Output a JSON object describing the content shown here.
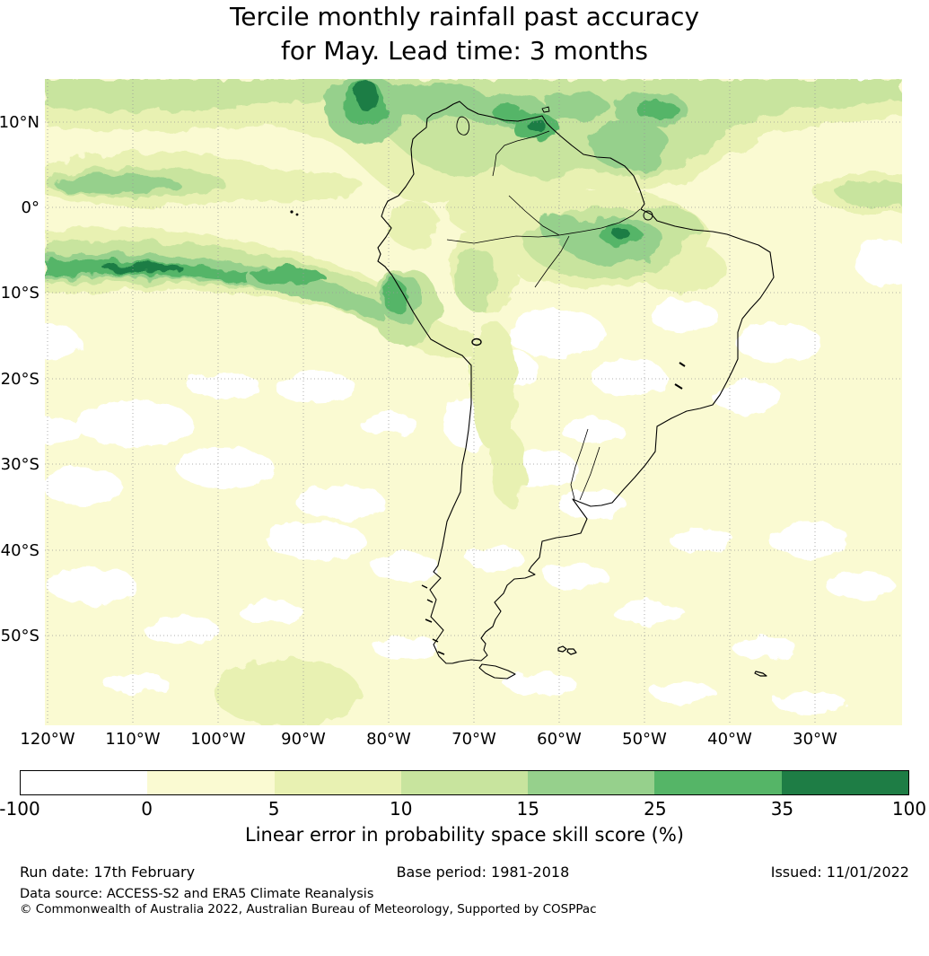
{
  "title": {
    "line1": "Tercile monthly rainfall past accuracy",
    "line2": "for May. Lead time: 3 months"
  },
  "map": {
    "lat_ticks": [
      "10°N",
      "0°",
      "10°S",
      "20°S",
      "30°S",
      "40°S",
      "50°S"
    ],
    "lon_ticks": [
      "120°W",
      "110°W",
      "100°W",
      "90°W",
      "80°W",
      "70°W",
      "60°W",
      "50°W",
      "40°W",
      "30°W"
    ]
  },
  "colorbar": {
    "ticks": [
      "-100",
      "0",
      "5",
      "10",
      "15",
      "25",
      "35",
      "100"
    ],
    "colors": [
      "#ffffff",
      "#fafad2",
      "#e8f1b2",
      "#c8e49e",
      "#96d08c",
      "#55b567",
      "#1e7d45"
    ],
    "label": "Linear error in probability space skill score (%)"
  },
  "chart_data": {
    "type": "heatmap",
    "title": "Tercile monthly rainfall past accuracy for May. Lead time: 3 months",
    "region": "South America and surrounding oceans",
    "lon_ticks_deg_w": [
      120,
      110,
      100,
      90,
      80,
      70,
      60,
      50,
      40,
      30
    ],
    "lat_ticks_deg": [
      10,
      0,
      -10,
      -20,
      -30,
      -40,
      -50
    ],
    "scale_boundaries": [
      -100,
      0,
      5,
      10,
      15,
      25,
      35,
      100
    ],
    "scale_label": "Linear error in probability space skill score (%)",
    "palette": [
      "#ffffff",
      "#fafad2",
      "#e8f1b2",
      "#c8e49e",
      "#96d08c",
      "#55b567",
      "#1e7d45"
    ],
    "high_skill_areas": [
      "band across northern South America / southern Caribbean near 5-12N",
      "equatorial Pacific band near 5-10S west of 85W",
      "central Amazon basin near 0-10S, 50-65W",
      "Peruvian coast near 5-15S"
    ],
    "low_skill_areas": [
      "scattered near-zero/negative patches over interior Brazil, Argentina and mid-latitude oceans"
    ]
  },
  "footer": {
    "run_date": "Run date: 17th February",
    "base_period": "Base period: 1981-2018",
    "issued": "Issued: 11/01/2022",
    "data_source": "Data source: ACCESS-S2 and ERA5 Climate Reanalysis",
    "copyright": "© Commonwealth of Australia 2022, Australian Bureau of Meteorology, Supported by COSPPac"
  }
}
